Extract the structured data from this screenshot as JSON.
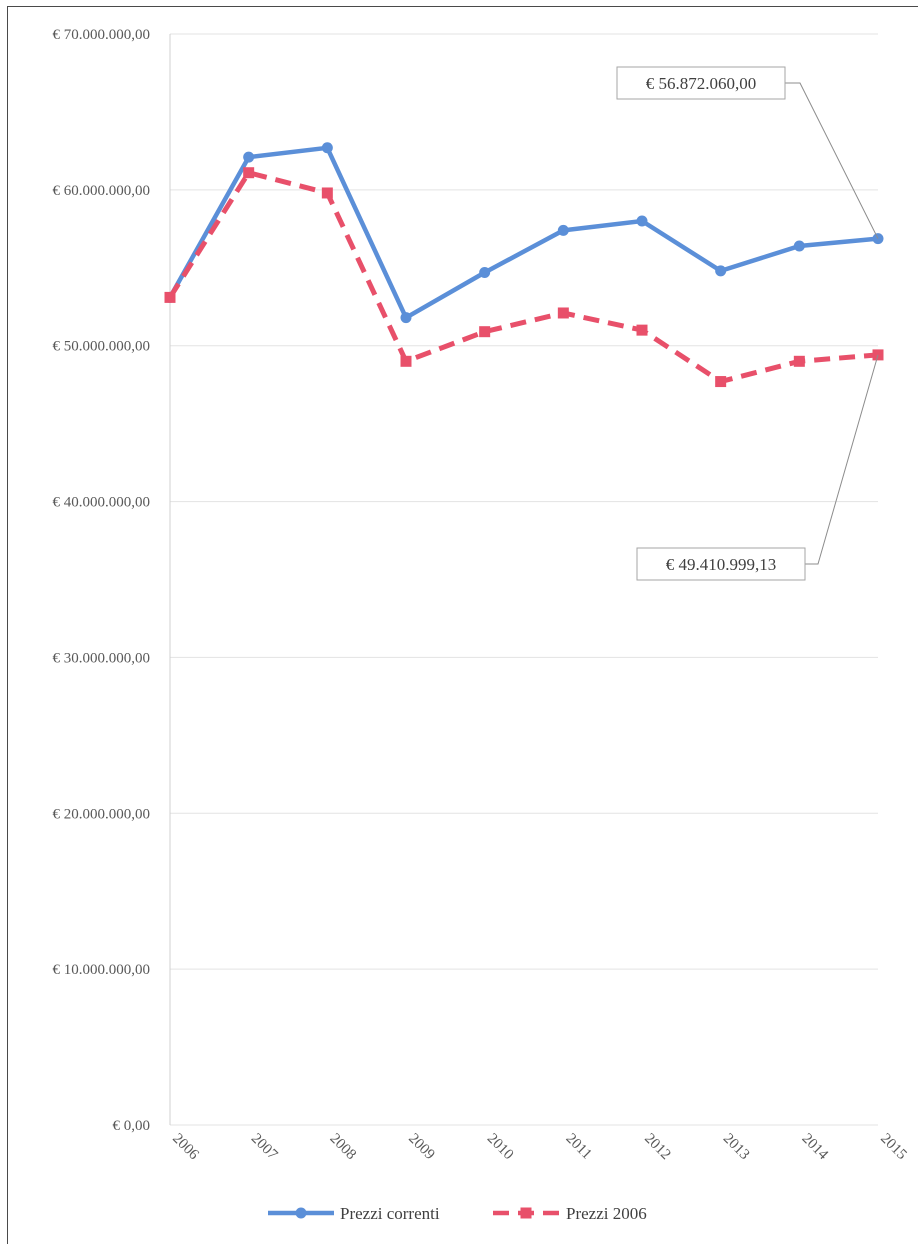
{
  "chart_data": {
    "type": "line",
    "categories": [
      "2006",
      "2007",
      "2008",
      "2009",
      "2010",
      "2011",
      "2012",
      "2013",
      "2014",
      "2015"
    ],
    "ylim": [
      0,
      70000000
    ],
    "ytick_values": [
      0,
      10000000,
      20000000,
      30000000,
      40000000,
      50000000,
      60000000,
      70000000
    ],
    "ytick_labels": [
      "€ 0,00",
      "€ 10.000.000,00",
      "€ 20.000.000,00",
      "€ 30.000.000,00",
      "€ 40.000.000,00",
      "€ 50.000.000,00",
      "€ 60.000.000,00",
      "€ 70.000.000,00"
    ],
    "grid": true,
    "legend_position": "bottom",
    "series": [
      {
        "name": "Prezzi correnti",
        "color": "#5b8fd8",
        "marker": "circle",
        "dash": "solid",
        "values": [
          53100000,
          62100000,
          62700000,
          51800000,
          54700000,
          57400000,
          58000000,
          54800000,
          56400000,
          56872060
        ]
      },
      {
        "name": "Prezzi 2006",
        "color": "#e8506a",
        "marker": "square",
        "dash": "dashed",
        "values": [
          53100000,
          61100000,
          59800000,
          49000000,
          50900000,
          52100000,
          51000000,
          47700000,
          49000000,
          49410999.13
        ]
      }
    ],
    "annotations": [
      {
        "label": "€ 56.872.060,00",
        "series": 0,
        "category": "2015",
        "box_side": "above-left"
      },
      {
        "label": "€ 49.410.999,13",
        "series": 1,
        "category": "2015",
        "box_side": "below-left"
      }
    ]
  }
}
